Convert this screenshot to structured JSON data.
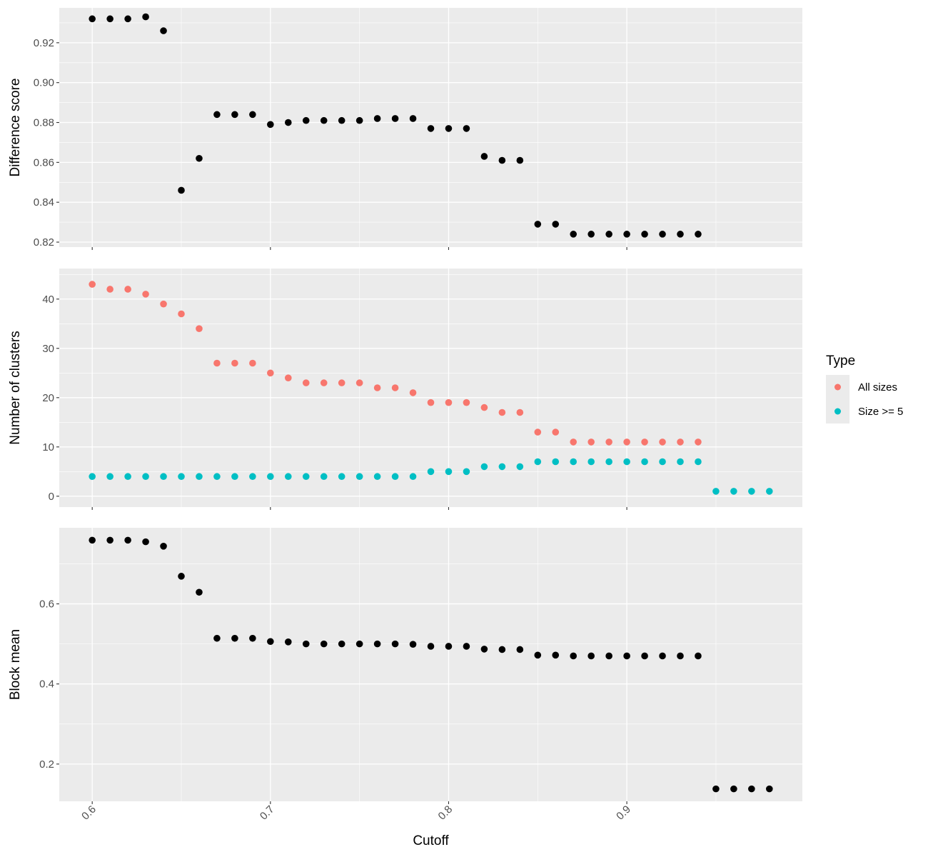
{
  "chart_data": [
    {
      "type": "scatter",
      "panel": "top",
      "ylabel": "Difference score",
      "xlabel": "",
      "ylim": [
        0.8175,
        0.9375
      ],
      "yticks": [
        0.82,
        0.84,
        0.86,
        0.88,
        0.9,
        0.92
      ],
      "ytick_labels": [
        "0.82",
        "0.84",
        "0.86",
        "0.88",
        "0.90",
        "0.92"
      ],
      "grid": true,
      "series": [
        {
          "color": "#000000",
          "x": [
            0.6,
            0.61,
            0.62,
            0.63,
            0.64,
            0.65,
            0.66,
            0.67,
            0.68,
            0.69,
            0.7,
            0.71,
            0.72,
            0.73,
            0.74,
            0.75,
            0.76,
            0.77,
            0.78,
            0.79,
            0.8,
            0.81,
            0.82,
            0.83,
            0.84,
            0.85,
            0.86,
            0.87,
            0.88,
            0.89,
            0.9,
            0.91,
            0.92,
            0.93,
            0.94
          ],
          "y": [
            0.932,
            0.932,
            0.932,
            0.933,
            0.926,
            0.846,
            0.862,
            0.884,
            0.884,
            0.884,
            0.879,
            0.88,
            0.881,
            0.881,
            0.881,
            0.881,
            0.882,
            0.882,
            0.882,
            0.877,
            0.877,
            0.877,
            0.863,
            0.861,
            0.861,
            0.829,
            0.829,
            0.824,
            0.824,
            0.824,
            0.824,
            0.824,
            0.824,
            0.824,
            0.824
          ]
        }
      ]
    },
    {
      "type": "scatter",
      "panel": "middle",
      "ylabel": "Number of clusters",
      "xlabel": "",
      "ylim": [
        -2.2,
        46.2
      ],
      "yticks": [
        0,
        10,
        20,
        30,
        40
      ],
      "ytick_labels": [
        "0",
        "10",
        "20",
        "30",
        "40"
      ],
      "grid": true,
      "legend": {
        "title": "Type",
        "placement": "right",
        "entries": [
          "All sizes",
          "Size >= 5"
        ]
      },
      "series": [
        {
          "name": "All sizes",
          "color": "#F8766D",
          "x": [
            0.6,
            0.61,
            0.62,
            0.63,
            0.64,
            0.65,
            0.66,
            0.67,
            0.68,
            0.69,
            0.7,
            0.71,
            0.72,
            0.73,
            0.74,
            0.75,
            0.76,
            0.77,
            0.78,
            0.79,
            0.8,
            0.81,
            0.82,
            0.83,
            0.84,
            0.85,
            0.86,
            0.87,
            0.88,
            0.89,
            0.9,
            0.91,
            0.92,
            0.93,
            0.94
          ],
          "y": [
            43,
            42,
            42,
            41,
            39,
            37,
            34,
            27,
            27,
            27,
            25,
            24,
            23,
            23,
            23,
            23,
            22,
            22,
            21,
            19,
            19,
            19,
            18,
            17,
            17,
            13,
            13,
            11,
            11,
            11,
            11,
            11,
            11,
            11,
            11
          ]
        },
        {
          "name": "Size >= 5",
          "color": "#00BFC4",
          "x": [
            0.6,
            0.61,
            0.62,
            0.63,
            0.64,
            0.65,
            0.66,
            0.67,
            0.68,
            0.69,
            0.7,
            0.71,
            0.72,
            0.73,
            0.74,
            0.75,
            0.76,
            0.77,
            0.78,
            0.79,
            0.8,
            0.81,
            0.82,
            0.83,
            0.84,
            0.85,
            0.86,
            0.87,
            0.88,
            0.89,
            0.9,
            0.91,
            0.92,
            0.93,
            0.94,
            0.95,
            0.96,
            0.97,
            0.98
          ],
          "y": [
            4,
            4,
            4,
            4,
            4,
            4,
            4,
            4,
            4,
            4,
            4,
            4,
            4,
            4,
            4,
            4,
            4,
            4,
            4,
            5,
            5,
            5,
            6,
            6,
            6,
            7,
            7,
            7,
            7,
            7,
            7,
            7,
            7,
            7,
            7,
            1,
            1,
            1,
            1
          ]
        }
      ]
    },
    {
      "type": "scatter",
      "panel": "bottom",
      "ylabel": "Block mean",
      "xlabel": "Cutoff",
      "xlim": [
        0.5815,
        0.9985
      ],
      "xticks": [
        0.6,
        0.7,
        0.8,
        0.9
      ],
      "xtick_labels": [
        "0.6",
        "0.7",
        "0.8",
        "0.9"
      ],
      "ylim": [
        0.107,
        0.79
      ],
      "yticks": [
        0.2,
        0.4,
        0.6
      ],
      "ytick_labels": [
        "0.2",
        "0.4",
        "0.6"
      ],
      "grid": true,
      "series": [
        {
          "color": "#000000",
          "x": [
            0.6,
            0.61,
            0.62,
            0.63,
            0.64,
            0.65,
            0.66,
            0.67,
            0.68,
            0.69,
            0.7,
            0.71,
            0.72,
            0.73,
            0.74,
            0.75,
            0.76,
            0.77,
            0.78,
            0.79,
            0.8,
            0.81,
            0.82,
            0.83,
            0.84,
            0.85,
            0.86,
            0.87,
            0.88,
            0.89,
            0.9,
            0.91,
            0.92,
            0.93,
            0.94,
            0.95,
            0.96,
            0.97,
            0.98
          ],
          "y": [
            0.759,
            0.759,
            0.759,
            0.755,
            0.744,
            0.669,
            0.629,
            0.514,
            0.514,
            0.514,
            0.506,
            0.505,
            0.5,
            0.5,
            0.5,
            0.5,
            0.5,
            0.5,
            0.499,
            0.494,
            0.494,
            0.494,
            0.487,
            0.486,
            0.486,
            0.472,
            0.472,
            0.47,
            0.47,
            0.47,
            0.47,
            0.47,
            0.47,
            0.47,
            0.47,
            0.138,
            0.138,
            0.138,
            0.138
          ]
        }
      ]
    }
  ]
}
